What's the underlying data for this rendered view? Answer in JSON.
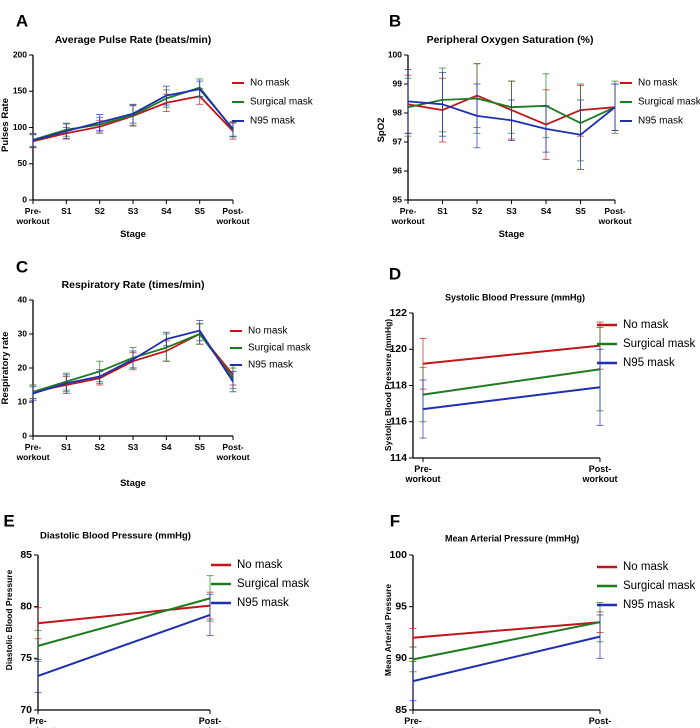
{
  "colors": {
    "no_mask": "#c0161b",
    "surgical_mask": "#1e7b1e",
    "n95_mask": "#1f2fb0"
  },
  "chart_data": [
    {
      "panel": "A",
      "type": "line",
      "title": "Average Pulse Rate (beats/min)",
      "xlabel": "Stage",
      "ylabel": "Pulses Rate",
      "categories": [
        "Pre-\nworkout",
        "S1",
        "S2",
        "S3",
        "S4",
        "S5",
        "Post-\nworkout"
      ],
      "ylim": [
        0,
        200
      ],
      "yticks": [
        0,
        50,
        100,
        150,
        200
      ],
      "series": [
        {
          "name": "No mask",
          "color": "#c0161b",
          "values": [
            81,
            92,
            101,
            116,
            134,
            143,
            95
          ],
          "errors": [
            9,
            8,
            9,
            14,
            12,
            11,
            11
          ]
        },
        {
          "name": "Surgical mask",
          "color": "#1e7b1e",
          "values": [
            83,
            97,
            104,
            117,
            140,
            155,
            97
          ],
          "errors": [
            9,
            9,
            10,
            14,
            12,
            12,
            10
          ]
        },
        {
          "name": "N95 mask",
          "color": "#1f2fb0",
          "values": [
            82,
            95,
            107,
            119,
            144,
            153,
            98
          ],
          "errors": [
            9,
            10,
            11,
            13,
            13,
            11,
            10
          ]
        }
      ]
    },
    {
      "panel": "B",
      "type": "line",
      "title": "Peripheral Oxygen Saturation (%)",
      "xlabel": "Stage",
      "ylabel": "SpO2",
      "categories": [
        "Pre-\nworkout",
        "S1",
        "S2",
        "S3",
        "S4",
        "S5",
        "Post-\nworkout"
      ],
      "ylim": [
        95,
        100
      ],
      "yticks": [
        95,
        96,
        97,
        98,
        99,
        100
      ],
      "series": [
        {
          "name": "No mask",
          "color": "#c0161b",
          "values": [
            98.3,
            98.1,
            98.6,
            98.1,
            97.6,
            98.1,
            98.2
          ],
          "errors": [
            1.0,
            1.1,
            1.1,
            1.0,
            1.2,
            0.9,
            0.8
          ]
        },
        {
          "name": "Surgical mask",
          "color": "#1e7b1e",
          "values": [
            98.2,
            98.45,
            98.5,
            98.2,
            98.25,
            97.65,
            98.2
          ],
          "errors": [
            1.0,
            1.1,
            1.2,
            0.9,
            1.1,
            1.3,
            0.9
          ]
        },
        {
          "name": "N95 mask",
          "color": "#1f2fb0",
          "values": [
            98.4,
            98.3,
            97.9,
            97.75,
            97.45,
            97.25,
            98.2
          ],
          "errors": [
            1.1,
            1.1,
            1.1,
            0.7,
            0.8,
            1.2,
            0.8
          ]
        }
      ]
    },
    {
      "panel": "C",
      "type": "line",
      "title": "Respiratory Rate (times/min)",
      "xlabel": "Stage",
      "ylabel": "Respiratory rate",
      "categories": [
        "Pre-\nworkout",
        "S1",
        "S2",
        "S3",
        "S4",
        "S5",
        "Post-\nworkout"
      ],
      "ylim": [
        0,
        40
      ],
      "yticks": [
        0,
        10,
        20,
        30,
        40
      ],
      "series": [
        {
          "name": "No mask",
          "color": "#c0161b",
          "values": [
            13,
            15,
            17,
            22,
            25,
            30,
            18
          ],
          "errors": [
            2,
            2.5,
            2,
            2.5,
            3,
            3,
            3
          ]
        },
        {
          "name": "Surgical mask",
          "color": "#1e7b1e",
          "values": [
            13,
            16,
            19,
            23,
            26,
            30,
            17
          ],
          "errors": [
            2,
            2.5,
            3,
            3,
            4,
            3,
            3
          ]
        },
        {
          "name": "N95 mask",
          "color": "#1f2fb0",
          "values": [
            12.5,
            15.5,
            17.5,
            22.5,
            28.5,
            31,
            16
          ],
          "errors": [
            2,
            2.5,
            2,
            2.5,
            2,
            3,
            3
          ]
        }
      ]
    },
    {
      "panel": "D",
      "type": "line",
      "title": "Systolic Blood Pressure (mmHg)",
      "xlabel": "",
      "ylabel": "Systolic Blood Pressure (mmHg)",
      "categories": [
        "Pre-\nworkout",
        "Post-\nworkout"
      ],
      "ylim": [
        114,
        122
      ],
      "yticks": [
        114,
        116,
        118,
        120,
        122
      ],
      "series": [
        {
          "name": "No mask",
          "color": "#c0161b",
          "values": [
            119.2,
            120.2
          ],
          "errors": [
            1.4,
            1.3
          ]
        },
        {
          "name": "Surgical mask",
          "color": "#1e7b1e",
          "values": [
            117.5,
            118.9
          ],
          "errors": [
            1.5,
            2.3
          ]
        },
        {
          "name": "N95 mask",
          "color": "#1f2fb0",
          "values": [
            116.7,
            117.9
          ],
          "errors": [
            1.6,
            2.1
          ]
        }
      ]
    },
    {
      "panel": "E",
      "type": "line",
      "title": "Diastolic Blood Pressure (mmHg)",
      "xlabel": "",
      "ylabel": "Diastolic Blood Pressure",
      "categories": [
        "Pre-\nworkout",
        "Post-\nworkout"
      ],
      "ylim": [
        70,
        85
      ],
      "yticks": [
        70,
        75,
        80,
        85
      ],
      "series": [
        {
          "name": "No mask",
          "color": "#c0161b",
          "values": [
            78.4,
            80.1
          ],
          "errors": [
            1.5,
            1.3
          ]
        },
        {
          "name": "Surgical mask",
          "color": "#1e7b1e",
          "values": [
            76.2,
            80.8
          ],
          "errors": [
            1.5,
            2.2
          ]
        },
        {
          "name": "N95 mask",
          "color": "#1f2fb0",
          "values": [
            73.3,
            79.2
          ],
          "errors": [
            1.6,
            2.0
          ]
        }
      ]
    },
    {
      "panel": "F",
      "type": "line",
      "title": "Mean Arterial Pressure (mmHg)",
      "xlabel": "",
      "ylabel": "Mean Arterial Pressure",
      "categories": [
        "Pre-\nworkout",
        "Post-\nworkout"
      ],
      "ylim": [
        85,
        100
      ],
      "yticks": [
        85,
        90,
        95,
        100
      ],
      "series": [
        {
          "name": "No mask",
          "color": "#c0161b",
          "values": [
            92.0,
            93.5
          ],
          "errors": [
            0.9,
            1.0
          ]
        },
        {
          "name": "Surgical mask",
          "color": "#1e7b1e",
          "values": [
            89.9,
            93.5
          ],
          "errors": [
            1.2,
            1.9
          ]
        },
        {
          "name": "N95 mask",
          "color": "#1f2fb0",
          "values": [
            87.8,
            92.1
          ],
          "errors": [
            1.9,
            2.1
          ]
        }
      ]
    }
  ]
}
